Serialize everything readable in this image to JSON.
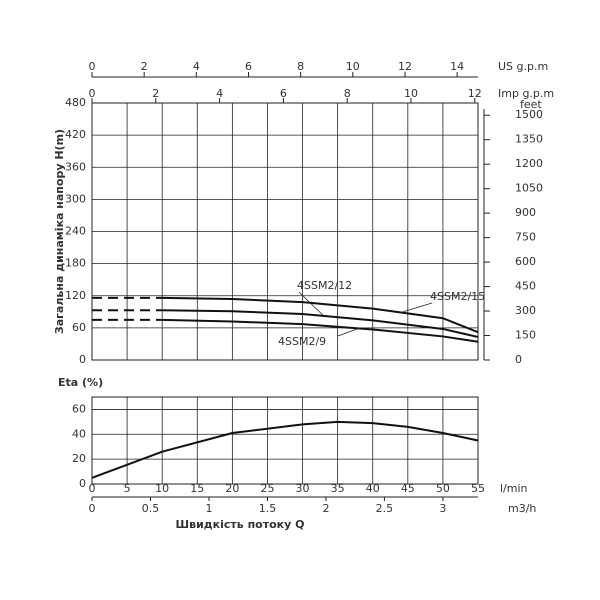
{
  "chart_data": [
    {
      "type": "line",
      "y_label": "Загальна динаміка напору H(m)",
      "x": [
        0,
        10,
        20,
        30,
        40,
        50,
        55
      ],
      "xlim": [
        0,
        55
      ],
      "xticks": [
        0,
        5,
        10,
        15,
        20,
        25,
        30,
        35,
        40,
        45,
        50,
        55
      ],
      "ylim": [
        0,
        480
      ],
      "yticks": [
        0,
        60,
        120,
        180,
        240,
        300,
        360,
        420,
        480
      ],
      "y2_label": "feet",
      "y2lim": [
        0,
        1575
      ],
      "y2ticks": [
        0,
        150,
        300,
        450,
        600,
        750,
        900,
        1050,
        1200,
        1350,
        1500
      ],
      "us_gpm": {
        "label": "US g.p.m",
        "lim": [
          0,
          14.8
        ],
        "ticks": [
          0,
          2,
          4,
          6,
          8,
          10,
          12,
          14
        ]
      },
      "imp_gpm": {
        "label": "Imp g.p.m",
        "lim": [
          0,
          12.1
        ],
        "ticks": [
          0,
          2,
          4,
          6,
          8,
          10,
          12
        ]
      },
      "dashed_up_to_x": 10,
      "grid": true,
      "series": [
        {
          "name": "4SSM2/15",
          "color": "#111",
          "values": [
            116,
            116,
            114,
            108,
            96,
            78,
            52
          ]
        },
        {
          "name": "4SSM2/12",
          "color": "#111",
          "values": [
            93,
            93,
            91,
            86,
            74,
            58,
            43
          ]
        },
        {
          "name": "4SSM2/9",
          "color": "#111",
          "values": [
            75,
            75,
            72,
            67,
            57,
            44,
            34
          ]
        }
      ]
    },
    {
      "type": "line",
      "y_label": "Eta (%)",
      "x": [
        0,
        10,
        20,
        30,
        35,
        40,
        45,
        50,
        55
      ],
      "values": [
        5,
        26,
        41,
        48,
        50,
        49,
        46,
        41,
        35
      ],
      "color": "#111",
      "xlim": [
        0,
        55
      ],
      "xticks": [
        0,
        5,
        10,
        15,
        20,
        25,
        30,
        35,
        40,
        45,
        50,
        55
      ],
      "x_unit": "l/min",
      "x2_unit": "m3/h",
      "x2lim": [
        0,
        3.3
      ],
      "x2ticks": [
        0,
        0.5,
        1,
        1.5,
        2,
        2.5,
        3
      ],
      "x_title": "Швидкість потоку Q",
      "ylim": [
        0,
        70
      ],
      "yticks": [
        0,
        20,
        40,
        60
      ],
      "grid": true
    }
  ]
}
